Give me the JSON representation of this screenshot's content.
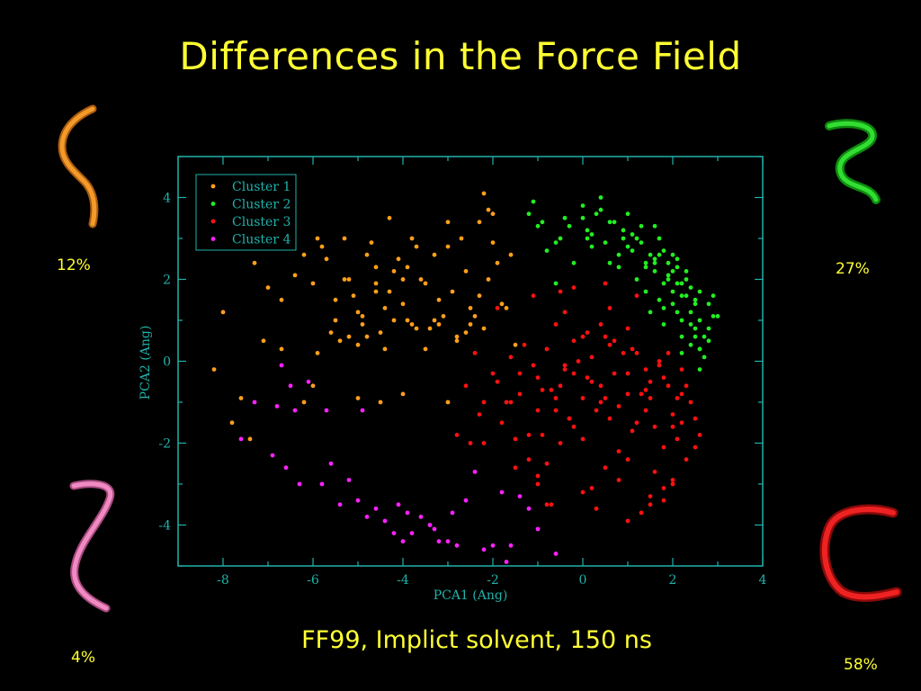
{
  "slide": {
    "title": "Differences in the Force Field",
    "subtitle": "FF99, Implict solvent, 150 ns"
  },
  "structures": [
    {
      "id": "cluster-1",
      "percent": "12%",
      "color": "#e08a1a"
    },
    {
      "id": "cluster-2",
      "percent": "27%",
      "color": "#22cc22"
    },
    {
      "id": "cluster-4",
      "percent": "4%",
      "color": "#e07ab0"
    },
    {
      "id": "cluster-3",
      "percent": "58%",
      "color": "#dd1111"
    }
  ],
  "chart_data": {
    "type": "scatter",
    "xlabel": "PCA1 (Ang)",
    "ylabel": "PCA2 (Ang)",
    "xlim": [
      -9,
      4
    ],
    "ylim": [
      -5,
      5
    ],
    "xticks": [
      -8,
      -6,
      -4,
      -2,
      0,
      2,
      4
    ],
    "yticks": [
      -4,
      -2,
      0,
      2,
      4
    ],
    "legend_position": "top-left",
    "axis_color": "#20b2aa",
    "series": [
      {
        "name": "Cluster 1",
        "color": "#ff9f1a",
        "x": [
          -8.2,
          -8.0,
          -7.3,
          -7.1,
          -7.0,
          -6.7,
          -6.7,
          -6.4,
          -6.2,
          -6.0,
          -5.9,
          -5.7,
          -5.5,
          -5.3,
          -5.2,
          -5.4,
          -5.0,
          -4.9,
          -4.8,
          -4.6,
          -4.5,
          -4.3,
          -4.2,
          -4.0,
          -3.8,
          -3.7,
          -3.5,
          -3.3,
          -3.1,
          -3.0,
          -2.8,
          -2.6,
          -2.5,
          -2.3,
          -2.0,
          -7.6,
          -7.8,
          -7.4,
          -6.0,
          -5.6,
          -5.1,
          -4.7,
          -4.4,
          -4.1,
          -3.9,
          -3.6,
          -3.2,
          -2.9,
          -2.7,
          -2.4,
          -2.2,
          -1.9,
          -5.8,
          -5.5,
          -5.0,
          -4.6,
          -4.2,
          -3.9,
          -3.4,
          -3.0,
          -2.6,
          -2.2,
          -1.8,
          -1.6,
          -6.2,
          -5.9,
          -5.3,
          -4.8,
          -4.4,
          -3.8,
          -3.2,
          -2.5,
          -2.0,
          -1.7,
          -5.0,
          -4.5,
          -4.0,
          -3.5,
          -5.2,
          -4.9,
          -4.6,
          -4.3,
          -3.7,
          -3.3,
          -2.8,
          -2.1,
          -1.5,
          -4.0,
          -3.0,
          -2.1,
          -2.3
        ],
        "y": [
          -0.2,
          1.2,
          2.4,
          0.5,
          1.8,
          0.3,
          1.5,
          2.1,
          2.6,
          1.9,
          3.0,
          2.5,
          1.0,
          3.0,
          2.0,
          0.5,
          1.2,
          0.9,
          2.6,
          1.7,
          0.7,
          3.5,
          2.2,
          1.4,
          3.0,
          0.8,
          1.9,
          2.6,
          1.1,
          3.4,
          0.6,
          2.2,
          1.3,
          3.4,
          2.9,
          -0.9,
          -1.5,
          -1.9,
          -0.6,
          0.7,
          1.6,
          2.9,
          0.3,
          2.5,
          1.0,
          2.0,
          0.9,
          1.7,
          3.0,
          1.1,
          0.8,
          2.4,
          2.8,
          1.5,
          0.4,
          1.9,
          1.0,
          2.3,
          0.8,
          2.8,
          0.7,
          4.1,
          1.4,
          2.6,
          -1.0,
          0.2,
          2.0,
          0.6,
          1.3,
          0.9,
          1.5,
          0.9,
          3.6,
          1.3,
          -0.9,
          -1.0,
          2.0,
          0.3,
          0.6,
          1.1,
          2.3,
          1.7,
          2.8,
          1.0,
          0.5,
          3.7,
          0.4,
          -0.8,
          -1.0,
          2.0,
          1.6
        ]
      },
      {
        "name": "Cluster 2",
        "color": "#22ee22",
        "x": [
          -1.2,
          -1.1,
          -1.0,
          -0.8,
          -0.6,
          -0.4,
          -0.2,
          0.0,
          0.2,
          0.4,
          0.6,
          0.8,
          1.0,
          1.2,
          1.4,
          1.6,
          1.8,
          2.0,
          2.2,
          2.4,
          2.6,
          2.8,
          3.0,
          0.1,
          0.3,
          0.5,
          0.7,
          0.9,
          1.1,
          1.3,
          1.5,
          1.7,
          1.9,
          2.1,
          2.3,
          2.5,
          2.7,
          0.8,
          1.0,
          1.2,
          1.4,
          1.6,
          1.8,
          2.0,
          2.2,
          2.4,
          2.6,
          1.5,
          1.7,
          1.9,
          2.1,
          2.3,
          2.5,
          2.7,
          2.9,
          1.8,
          2.0,
          2.2,
          2.4,
          2.6,
          2.8,
          1.6,
          1.9,
          2.1,
          2.3,
          2.5,
          -0.6,
          -0.3,
          0.0,
          0.2,
          0.4,
          0.9,
          1.3,
          1.7,
          2.0,
          2.2,
          2.4,
          2.6,
          2.8,
          1.4,
          1.8,
          2.2,
          2.6,
          -0.9,
          -0.5,
          0.1,
          0.6,
          1.1,
          1.6,
          2.1,
          2.5,
          2.9
        ],
        "y": [
          3.6,
          3.9,
          3.3,
          2.7,
          1.9,
          3.5,
          2.4,
          3.8,
          3.1,
          4.0,
          3.4,
          2.6,
          3.6,
          3.0,
          2.4,
          3.3,
          2.7,
          2.2,
          1.9,
          1.2,
          1.7,
          0.8,
          1.1,
          3.2,
          3.6,
          2.9,
          3.4,
          3.0,
          2.7,
          3.3,
          2.6,
          3.0,
          2.1,
          2.5,
          2.0,
          1.5,
          0.6,
          2.3,
          2.8,
          2.0,
          1.7,
          2.4,
          1.9,
          2.6,
          1.6,
          0.9,
          0.3,
          1.2,
          1.5,
          2.0,
          1.2,
          1.6,
          0.8,
          0.1,
          1.1,
          0.9,
          1.4,
          0.6,
          1.8,
          0.3,
          1.4,
          2.2,
          2.4,
          1.9,
          2.2,
          1.4,
          2.9,
          3.3,
          3.5,
          2.8,
          3.7,
          3.2,
          2.9,
          2.6,
          1.7,
          1.0,
          0.4,
          -0.2,
          0.5,
          2.3,
          1.3,
          0.2,
          1.0,
          3.4,
          3.0,
          3.0,
          2.4,
          3.1,
          2.5,
          2.3,
          0.6,
          1.6
        ]
      },
      {
        "name": "Cluster 3",
        "color": "#ff1111",
        "x": [
          -2.6,
          -2.4,
          -2.2,
          -2.0,
          -1.8,
          -1.6,
          -1.4,
          -1.2,
          -1.0,
          -0.8,
          -0.6,
          -0.4,
          -0.2,
          0.0,
          0.2,
          0.4,
          0.6,
          0.8,
          1.0,
          1.2,
          1.4,
          1.6,
          1.8,
          2.0,
          2.2,
          2.4,
          2.6,
          -2.3,
          -1.9,
          -1.5,
          -1.1,
          -0.7,
          -0.3,
          0.1,
          0.5,
          0.9,
          1.3,
          1.7,
          2.1,
          2.5,
          -1.7,
          -1.3,
          -0.9,
          -0.5,
          -0.1,
          0.3,
          0.7,
          1.1,
          1.5,
          1.9,
          2.3,
          -1.4,
          -1.0,
          -0.6,
          -0.2,
          0.2,
          0.6,
          1.0,
          1.4,
          1.8,
          2.2,
          -1.2,
          -0.8,
          -0.4,
          0.0,
          0.4,
          0.8,
          1.2,
          1.6,
          2.0,
          -1.0,
          -0.5,
          0.0,
          0.5,
          1.0,
          1.5,
          2.0,
          2.5,
          -0.8,
          -0.3,
          0.3,
          0.8,
          1.3,
          1.8,
          -2.2,
          -1.6,
          -0.9,
          -0.2,
          0.5,
          1.1,
          1.7,
          2.3,
          -0.6,
          0.1,
          0.7,
          1.4,
          2.1,
          -1.9,
          -1.1,
          -0.4,
          0.4,
          1.2,
          1.9,
          -0.2,
          0.6,
          1.5,
          2.2,
          -1.5,
          -0.7,
          0.2,
          1.0,
          1.8,
          -2.8,
          -2.5,
          -1.0,
          0.0,
          1.0,
          2.0,
          -0.5,
          0.5,
          1.5
        ],
        "y": [
          -0.6,
          0.2,
          -1.0,
          -0.3,
          -1.5,
          0.1,
          -0.8,
          -2.4,
          -0.4,
          0.3,
          -1.2,
          -0.2,
          0.5,
          -0.9,
          0.1,
          -0.6,
          0.4,
          -1.1,
          -0.3,
          0.2,
          -0.7,
          -1.6,
          -0.4,
          -1.3,
          -0.2,
          -1.0,
          -1.8,
          -1.3,
          -0.5,
          -1.9,
          -0.1,
          -0.7,
          -1.4,
          -0.4,
          -0.9,
          0.2,
          -0.8,
          -0.1,
          -1.9,
          -1.4,
          -1.0,
          0.4,
          -1.8,
          -0.6,
          0.0,
          -1.2,
          -0.3,
          -1.7,
          -0.9,
          -0.6,
          -2.4,
          -0.3,
          -1.2,
          -0.9,
          -1.6,
          -0.5,
          -1.4,
          -0.8,
          -1.2,
          -2.1,
          -0.8,
          -1.8,
          -2.5,
          -0.1,
          -1.9,
          -1.0,
          -2.2,
          -1.5,
          -2.7,
          -1.6,
          -2.8,
          -2.0,
          -3.2,
          -2.6,
          -2.4,
          -3.3,
          -2.9,
          -2.1,
          -3.5,
          -1.4,
          -3.6,
          -2.9,
          -3.7,
          -3.1,
          -2.0,
          -1.0,
          -0.7,
          -0.3,
          0.6,
          0.3,
          0.0,
          -0.6,
          0.9,
          0.7,
          0.5,
          -0.2,
          -0.9,
          1.3,
          1.6,
          1.2,
          0.9,
          1.6,
          0.2,
          1.8,
          1.3,
          -0.5,
          -1.5,
          -2.6,
          -3.5,
          -3.1,
          -3.9,
          -3.4,
          -1.8,
          -2.0,
          -3.0,
          0.6,
          0.8,
          -3.0,
          1.7,
          1.9,
          -3.5
        ]
      },
      {
        "name": "Cluster 4",
        "color": "#ff22ff",
        "x": [
          -7.6,
          -6.9,
          -6.7,
          -6.5,
          -6.3,
          -6.1,
          -5.8,
          -5.6,
          -5.4,
          -5.2,
          -5.0,
          -4.8,
          -4.6,
          -4.4,
          -4.2,
          -4.0,
          -3.8,
          -3.6,
          -3.4,
          -3.2,
          -3.0,
          -2.8,
          -2.6,
          -2.4,
          -2.2,
          -2.0,
          -1.8,
          -1.6,
          -1.4,
          -1.2,
          -1.0,
          -0.6,
          -6.8,
          -6.6,
          -6.4,
          -5.7,
          -4.9,
          -4.1,
          -3.9,
          -3.3,
          -2.9,
          -1.7,
          -7.3
        ],
        "y": [
          -1.9,
          -2.3,
          -0.1,
          -0.6,
          -3.0,
          -0.5,
          -3.0,
          -2.5,
          -3.5,
          -2.9,
          -3.4,
          -3.8,
          -3.6,
          -3.9,
          -4.2,
          -4.4,
          -4.2,
          -3.8,
          -4.0,
          -4.4,
          -4.4,
          -4.5,
          -3.4,
          -2.7,
          -4.6,
          -4.5,
          -3.2,
          -4.5,
          -3.3,
          -3.6,
          -4.1,
          -4.7,
          -1.1,
          -2.6,
          -1.2,
          -1.2,
          -1.2,
          -3.5,
          -3.7,
          -4.1,
          -3.7,
          -4.9,
          -1.0
        ]
      }
    ]
  }
}
